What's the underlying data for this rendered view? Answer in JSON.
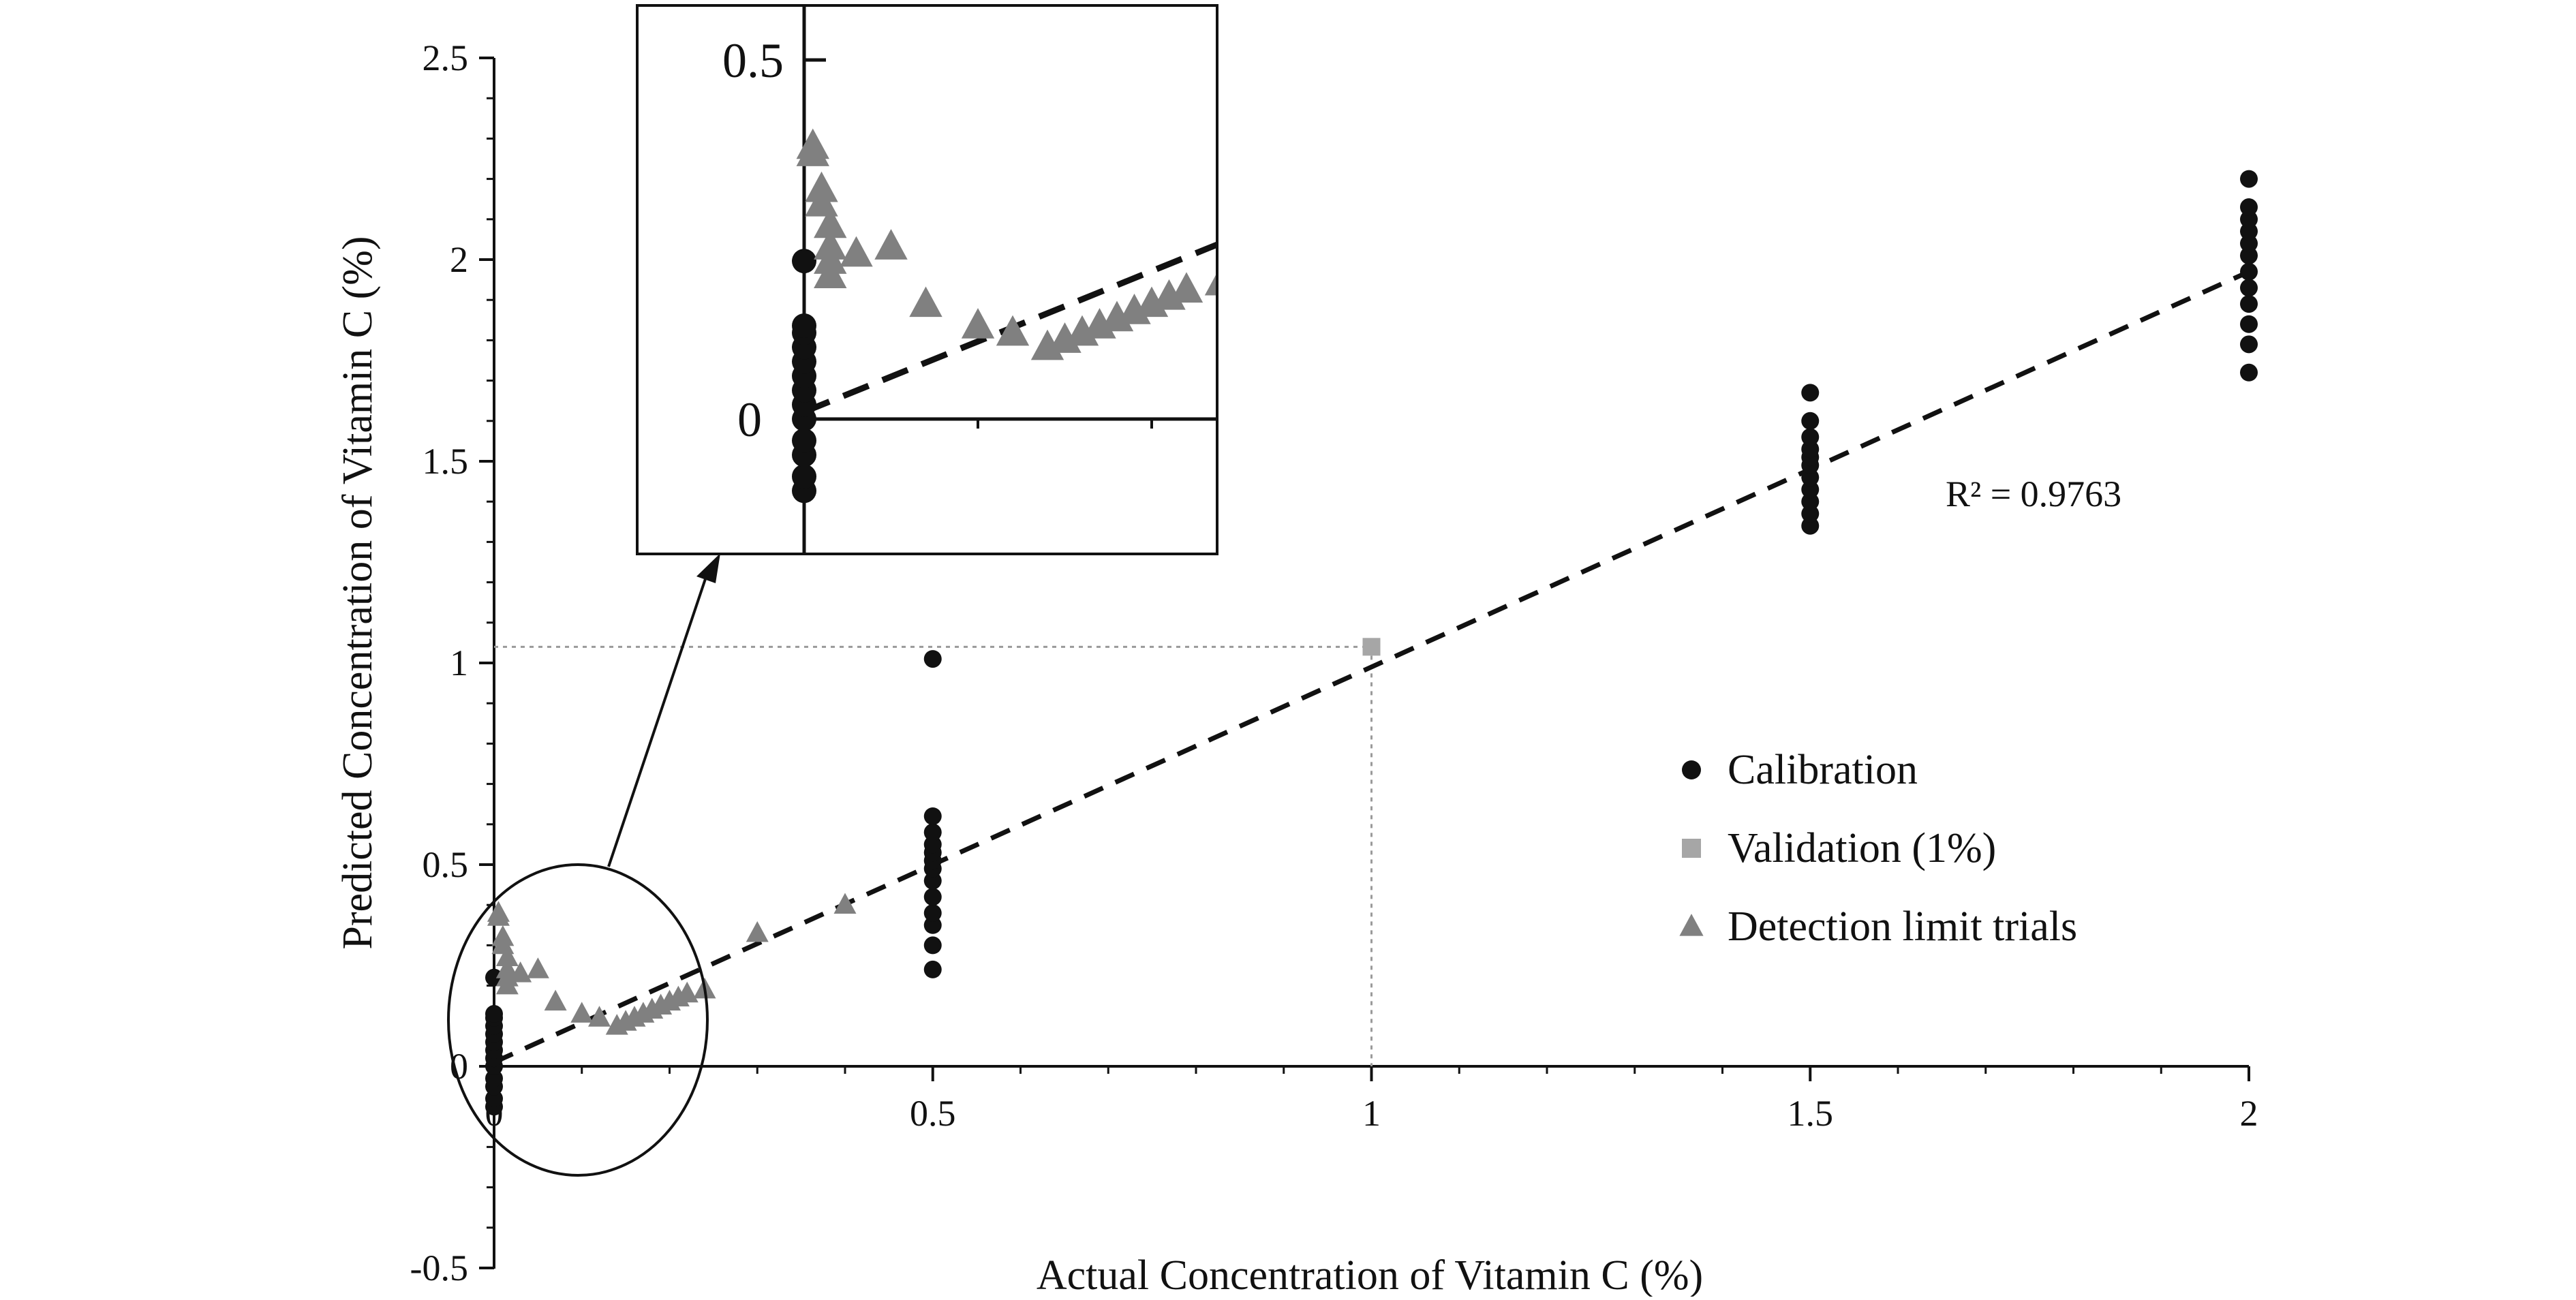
{
  "chart_data": {
    "type": "scatter",
    "xlabel": "Actual Concentration of Vitamin C (%)",
    "ylabel": "Predicted Concentration of Vitamin C (%)",
    "xlim": [
      0,
      2
    ],
    "ylim": [
      -0.5,
      2.5
    ],
    "x_ticks": [
      "0",
      "0.5",
      "1",
      "1.5",
      "2"
    ],
    "y_ticks": [
      "-0.5",
      "0",
      "0.5",
      "1",
      "1.5",
      "2",
      "2.5"
    ],
    "grid": false,
    "legend_position": "right",
    "colors": {
      "calibration": "#111111",
      "validation": "#a6a6a6",
      "detection": "#808080",
      "axis": "#111111"
    },
    "series": [
      {
        "name": "Calibration",
        "marker": "circle",
        "color": "#111111",
        "points": [
          [
            0,
            -0.1
          ],
          [
            0,
            -0.08
          ],
          [
            0,
            -0.05
          ],
          [
            0,
            -0.03
          ],
          [
            0,
            0.0
          ],
          [
            0,
            0.02
          ],
          [
            0,
            0.04
          ],
          [
            0,
            0.06
          ],
          [
            0,
            0.08
          ],
          [
            0,
            0.1
          ],
          [
            0,
            0.12
          ],
          [
            0,
            0.13
          ],
          [
            0,
            0.22
          ],
          [
            0.5,
            0.24
          ],
          [
            0.5,
            0.3
          ],
          [
            0.5,
            0.35
          ],
          [
            0.5,
            0.38
          ],
          [
            0.5,
            0.42
          ],
          [
            0.5,
            0.46
          ],
          [
            0.5,
            0.49
          ],
          [
            0.5,
            0.51
          ],
          [
            0.5,
            0.53
          ],
          [
            0.5,
            0.55
          ],
          [
            0.5,
            0.58
          ],
          [
            0.5,
            0.62
          ],
          [
            0.5,
            1.01
          ],
          [
            1.5,
            1.34
          ],
          [
            1.5,
            1.37
          ],
          [
            1.5,
            1.4
          ],
          [
            1.5,
            1.43
          ],
          [
            1.5,
            1.46
          ],
          [
            1.5,
            1.49
          ],
          [
            1.5,
            1.51
          ],
          [
            1.5,
            1.53
          ],
          [
            1.5,
            1.56
          ],
          [
            1.5,
            1.6
          ],
          [
            1.5,
            1.67
          ],
          [
            2,
            1.72
          ],
          [
            2,
            1.79
          ],
          [
            2,
            1.84
          ],
          [
            2,
            1.89
          ],
          [
            2,
            1.93
          ],
          [
            2,
            1.97
          ],
          [
            2,
            2.01
          ],
          [
            2,
            2.04
          ],
          [
            2,
            2.07
          ],
          [
            2,
            2.1
          ],
          [
            2,
            2.13
          ],
          [
            2,
            2.2
          ]
        ]
      },
      {
        "name": "Validation (1%)",
        "marker": "square",
        "color": "#a6a6a6",
        "points": [
          [
            1,
            1.04
          ]
        ]
      },
      {
        "name": "Detection limit trials",
        "marker": "triangle",
        "color": "#808080",
        "points": [
          [
            0.005,
            0.38
          ],
          [
            0.005,
            0.37
          ],
          [
            0.01,
            0.32
          ],
          [
            0.01,
            0.3
          ],
          [
            0.015,
            0.27
          ],
          [
            0.015,
            0.24
          ],
          [
            0.015,
            0.22
          ],
          [
            0.015,
            0.2
          ],
          [
            0.03,
            0.23
          ],
          [
            0.05,
            0.24
          ],
          [
            0.07,
            0.16
          ],
          [
            0.1,
            0.13
          ],
          [
            0.12,
            0.12
          ],
          [
            0.14,
            0.1
          ],
          [
            0.15,
            0.11
          ],
          [
            0.16,
            0.12
          ],
          [
            0.17,
            0.13
          ],
          [
            0.18,
            0.14
          ],
          [
            0.19,
            0.15
          ],
          [
            0.2,
            0.16
          ],
          [
            0.21,
            0.17
          ],
          [
            0.22,
            0.18
          ],
          [
            0.24,
            0.19
          ],
          [
            0.3,
            0.33
          ],
          [
            0.4,
            0.4
          ]
        ]
      }
    ],
    "trendline": {
      "x": [
        0,
        2
      ],
      "y": [
        0.01,
        1.97
      ],
      "style": "dashed"
    },
    "reference_lines": {
      "x": 1,
      "y": 1.04,
      "style": "dotted"
    },
    "r_squared_label": "R² = 0.9763",
    "inset": {
      "y_ticks": [
        "0",
        "0.5"
      ],
      "xlim": [
        0,
        0.25
      ],
      "ylim": [
        -0.13,
        0.5
      ],
      "x_tick_values": [
        0.1,
        0.2
      ]
    }
  }
}
